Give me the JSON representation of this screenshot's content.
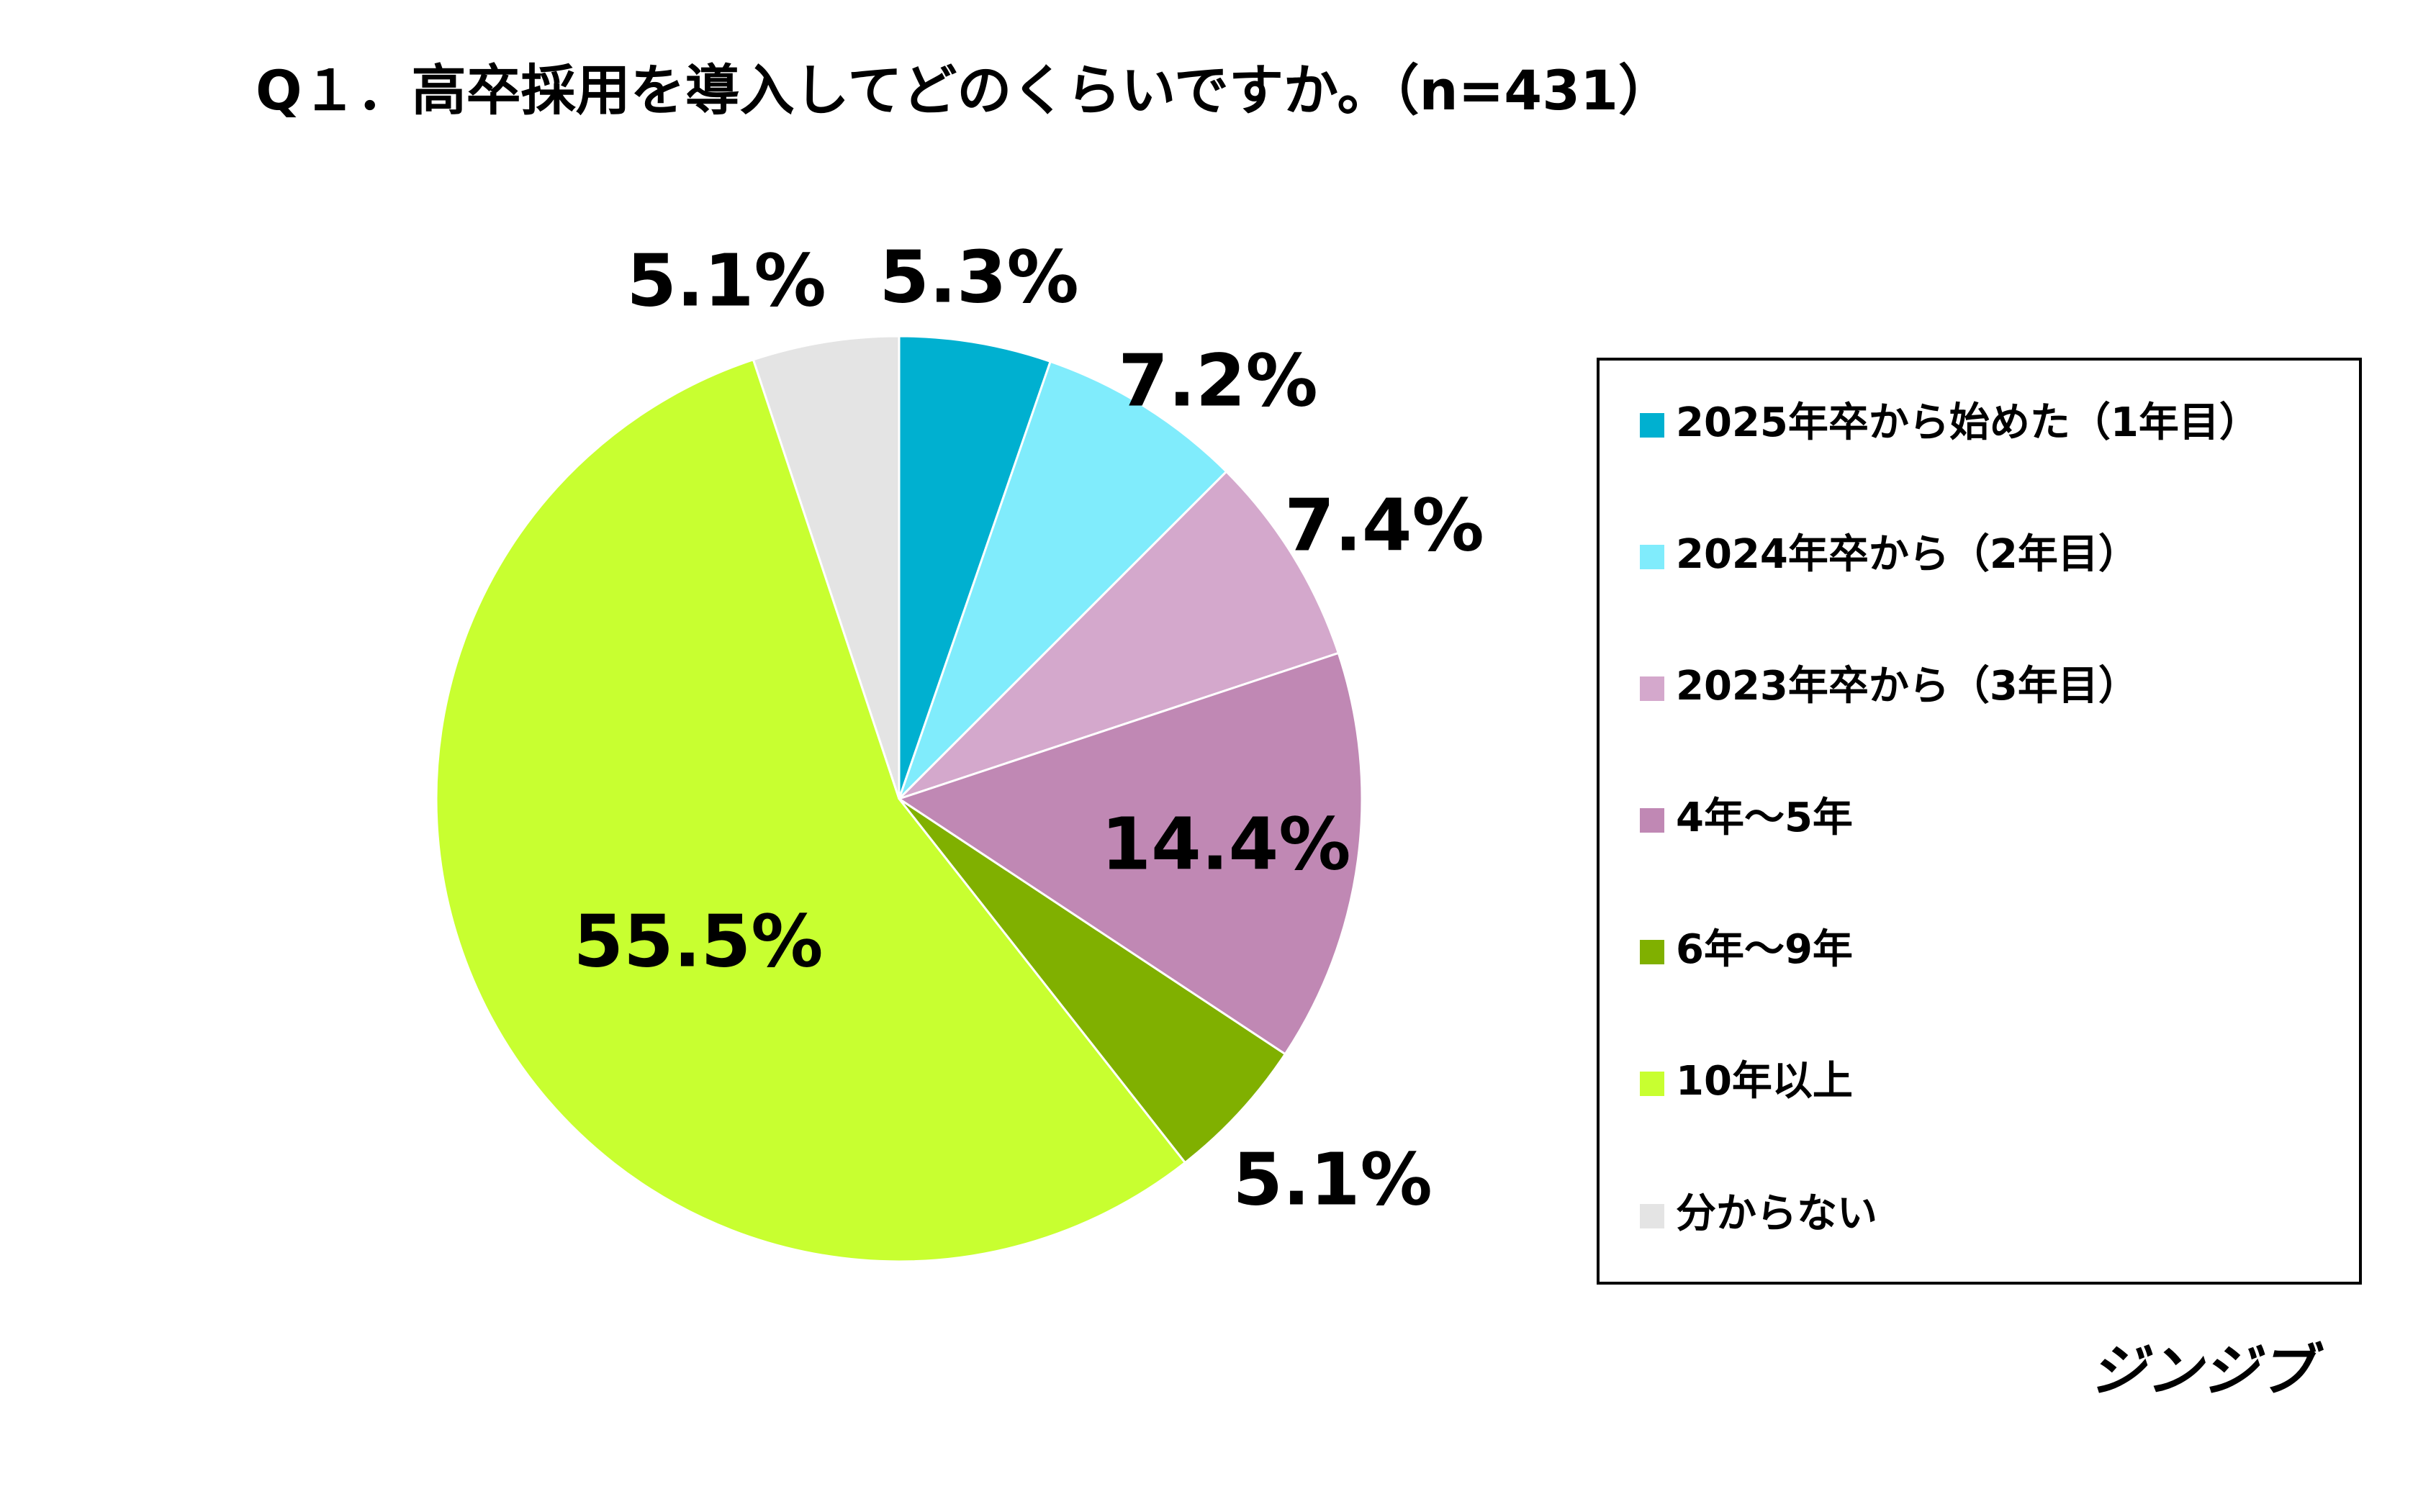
{
  "chart_data": {
    "type": "pie",
    "title": "Q１．高卒採用を導入してどのくらいですか。（n=431）",
    "categories": [
      "2025年卒から始めた（1年目）",
      "2024年卒から（2年目）",
      "2023年卒から（3年目）",
      "4年～5年",
      "6年～9年",
      "10年以上",
      "分からない"
    ],
    "values": [
      5.3,
      7.2,
      7.4,
      14.4,
      5.1,
      55.5,
      5.1
    ],
    "value_labels": [
      "5.3%",
      "7.2%",
      "7.4%",
      "14.4%",
      "5.1%",
      "55.5%",
      "5.1%"
    ],
    "colors": [
      "#00b0d0",
      "#80ecfc",
      "#d4a8cc",
      "#c088b4",
      "#80b000",
      "#c8ff30",
      "#e4e4e4"
    ],
    "legend": "right"
  },
  "footer": {
    "brand": "ジンジブ"
  }
}
